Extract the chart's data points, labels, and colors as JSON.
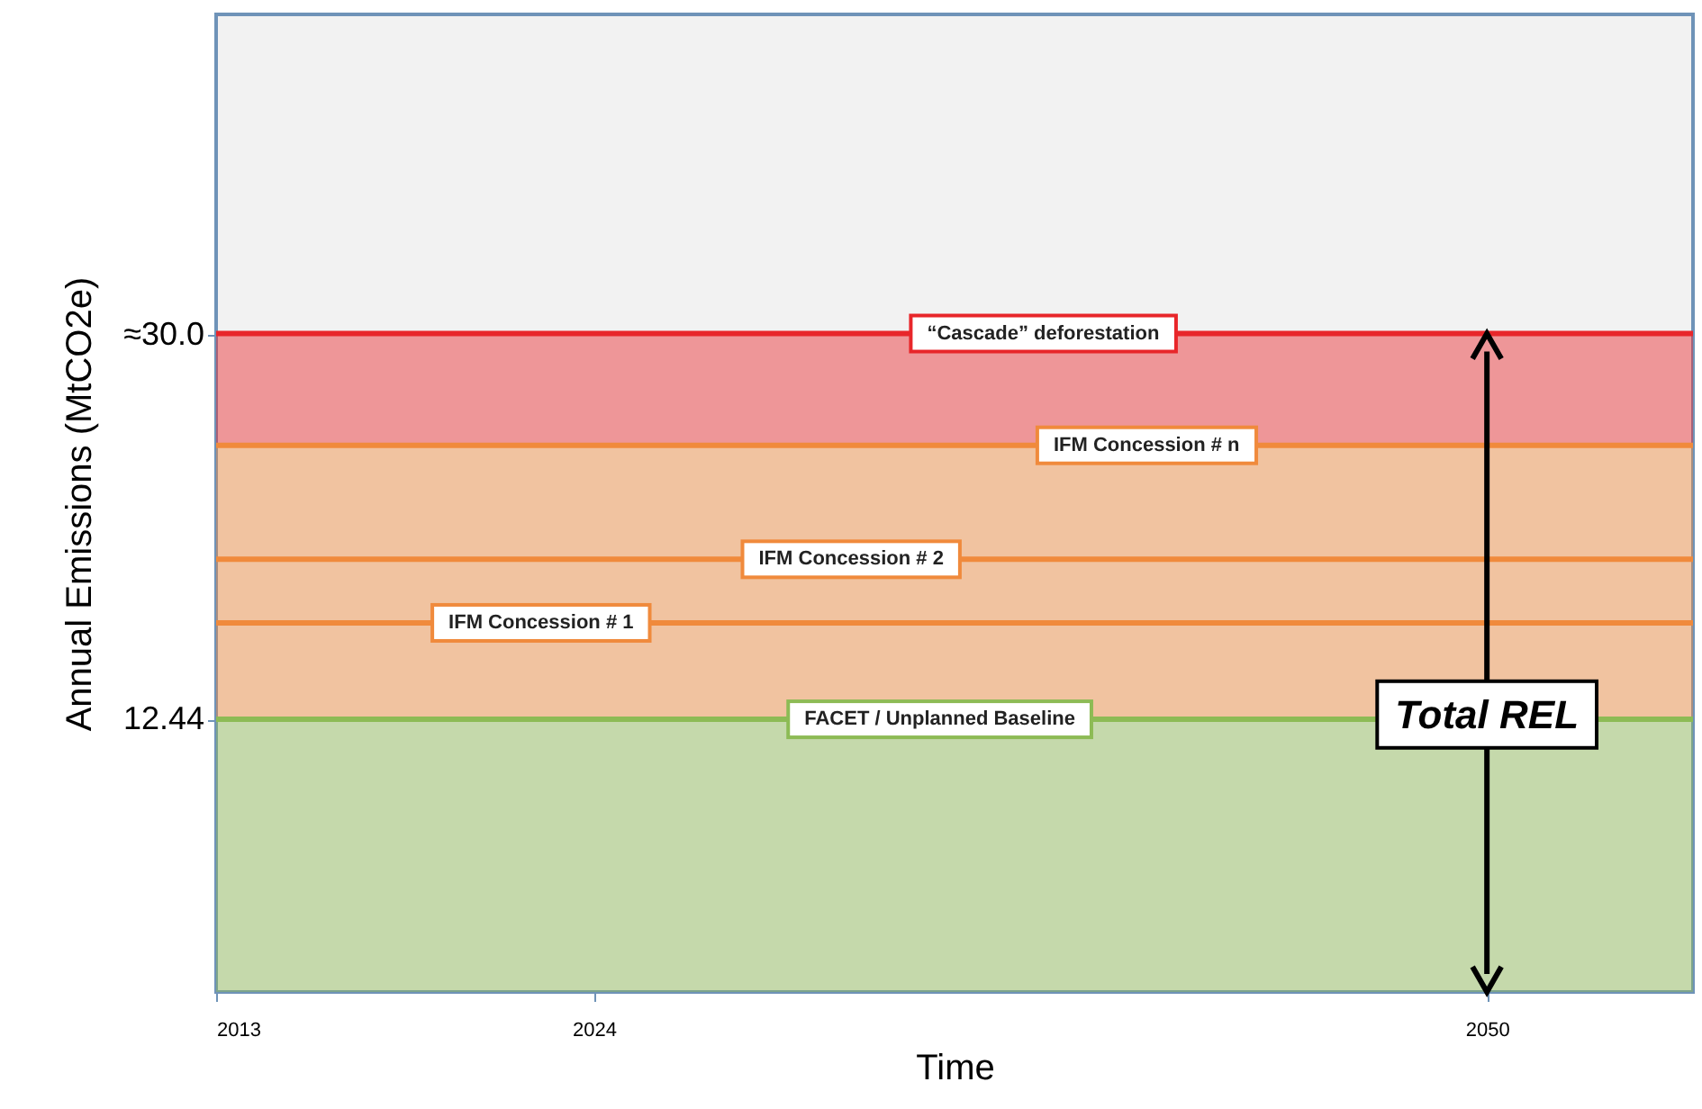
{
  "chart_data": {
    "type": "area",
    "stacked": true,
    "xlabel": "Time",
    "ylabel": "Annual Emissions (MtCO2e)",
    "x": [
      2013,
      2056
    ],
    "xlim": [
      2013,
      2056
    ],
    "xticks": [
      2013,
      2024,
      2050
    ],
    "ylim": [
      0,
      44.6
    ],
    "yticks": [
      12.44,
      {
        "value": 30,
        "label": "≈30.0"
      }
    ],
    "series": [
      {
        "name": "FACET / Unplanned Baseline",
        "color": "#8dbb55",
        "values": [
          12.44,
          12.44
        ]
      },
      {
        "name": "IFM Concession # 1",
        "color": "#f08a3c",
        "values": [
          4.4,
          4.4
        ]
      },
      {
        "name": "IFM Concession # 2",
        "color": "#f08a3c",
        "values": [
          2.9,
          2.9
        ]
      },
      {
        "name": "IFM Concession # n",
        "color": "#f08a3c",
        "values": [
          5.2,
          5.2
        ]
      },
      {
        "name": "“Cascade” deforestation",
        "color": "#e8262a",
        "values": [
          5.1,
          5.1
        ]
      }
    ],
    "ref_lines": [
      {
        "axis": "x",
        "value": 2050,
        "label": "Total REL",
        "color": "#000000"
      }
    ],
    "grid": false
  }
}
